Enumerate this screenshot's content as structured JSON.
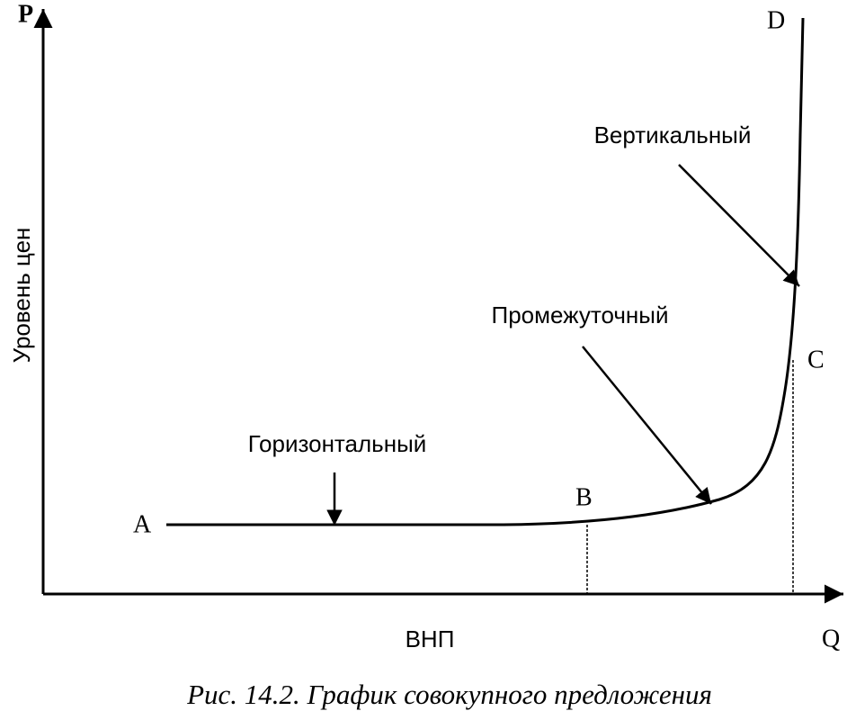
{
  "axes": {
    "y_label": "P",
    "x_label": "Q",
    "y_title": "Уровень цен",
    "x_title": "ВНП"
  },
  "points": {
    "a": "A",
    "b": "B",
    "c": "C",
    "d": "D"
  },
  "segments": {
    "horizontal": "Горизонтальный",
    "intermediate": "Промежуточный",
    "vertical": "Вертикальный"
  },
  "caption": "Рис. 14.2. График совокупного предложения"
}
